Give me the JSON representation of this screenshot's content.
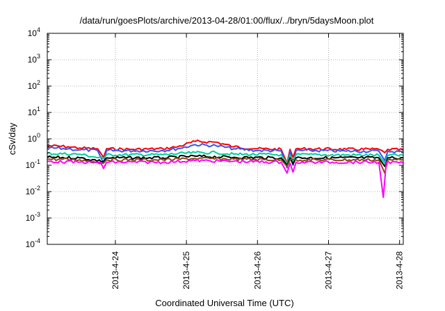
{
  "chart_data": {
    "type": "line",
    "title": "/data/run/goesPlots/archive/2013-04-28/01:00/flux/../bryn/5daysMoon.plot",
    "xlabel": "Coordinated Universal Time (UTC)",
    "ylabel": "cSv/day",
    "yscale": "log",
    "ylim": [
      0.0001,
      10000
    ],
    "xlim": [
      "2013-04-23 01:00",
      "2013-04-28 01:15"
    ],
    "grid": true,
    "x_ticks": [
      {
        "value": "2013-04-24 00:00",
        "label": "2013-4-24"
      },
      {
        "value": "2013-04-25 00:00",
        "label": "2013-4-25"
      },
      {
        "value": "2013-04-26 00:00",
        "label": "2013-4-26"
      },
      {
        "value": "2013-04-27 00:00",
        "label": "2013-4-27"
      },
      {
        "value": "2013-04-28 00:00",
        "label": "2013-4-28"
      }
    ],
    "y_ticks": [
      {
        "value": 0.0001,
        "base": "10",
        "exp": "-4"
      },
      {
        "value": 0.001,
        "base": "10",
        "exp": "-3"
      },
      {
        "value": 0.01,
        "base": "10",
        "exp": "-2"
      },
      {
        "value": 0.1,
        "base": "10",
        "exp": "-1"
      },
      {
        "value": 1,
        "base": "10",
        "exp": "0"
      },
      {
        "value": 10,
        "base": "10",
        "exp": "1"
      },
      {
        "value": 100,
        "base": "10",
        "exp": "2"
      },
      {
        "value": 1000,
        "base": "10",
        "exp": "3"
      },
      {
        "value": 10000,
        "base": "10",
        "exp": "4"
      }
    ],
    "series": [
      {
        "color": "#ff0000",
        "points": [
          [
            "2013-04-23 01:00",
            0.55
          ],
          [
            "2013-04-23 08:00",
            0.5
          ],
          [
            "2013-04-23 12:00",
            0.45
          ],
          [
            "2013-04-23 18:00",
            0.42
          ],
          [
            "2013-04-23 20:00",
            0.2
          ],
          [
            "2013-04-23 21:00",
            0.42
          ],
          [
            "2013-04-24 06:00",
            0.4
          ],
          [
            "2013-04-24 16:00",
            0.42
          ],
          [
            "2013-04-24 21:00",
            0.5
          ],
          [
            "2013-04-25 03:00",
            0.8
          ],
          [
            "2013-04-25 10:00",
            0.75
          ],
          [
            "2013-04-25 16:00",
            0.5
          ],
          [
            "2013-04-26 00:00",
            0.42
          ],
          [
            "2013-04-26 08:00",
            0.4
          ],
          [
            "2013-04-26 10:00",
            0.12
          ],
          [
            "2013-04-26 11:00",
            0.4
          ],
          [
            "2013-04-26 12:00",
            0.2
          ],
          [
            "2013-04-26 13:00",
            0.42
          ],
          [
            "2013-04-26 18:00",
            0.42
          ],
          [
            "2013-04-27 06:00",
            0.4
          ],
          [
            "2013-04-27 17:00",
            0.4
          ],
          [
            "2013-04-27 19:00",
            0.3
          ],
          [
            "2013-04-27 20:00",
            0.4
          ],
          [
            "2013-04-28 01:15",
            0.38
          ]
        ]
      },
      {
        "color": "#3355ff",
        "points": [
          [
            "2013-04-23 01:00",
            0.45
          ],
          [
            "2013-04-23 08:00",
            0.42
          ],
          [
            "2013-04-23 12:00",
            0.38
          ],
          [
            "2013-04-23 18:00",
            0.36
          ],
          [
            "2013-04-23 20:00",
            0.12
          ],
          [
            "2013-04-23 21:00",
            0.36
          ],
          [
            "2013-04-24 06:00",
            0.35
          ],
          [
            "2013-04-24 16:00",
            0.36
          ],
          [
            "2013-04-24 21:00",
            0.42
          ],
          [
            "2013-04-25 03:00",
            0.6
          ],
          [
            "2013-04-25 10:00",
            0.55
          ],
          [
            "2013-04-25 16:00",
            0.42
          ],
          [
            "2013-04-26 00:00",
            0.36
          ],
          [
            "2013-04-26 08:00",
            0.35
          ],
          [
            "2013-04-26 10:00",
            0.08
          ],
          [
            "2013-04-26 11:00",
            0.35
          ],
          [
            "2013-04-26 12:00",
            0.1
          ],
          [
            "2013-04-26 13:00",
            0.36
          ],
          [
            "2013-04-26 18:00",
            0.36
          ],
          [
            "2013-04-27 06:00",
            0.34
          ],
          [
            "2013-04-27 17:00",
            0.34
          ],
          [
            "2013-04-27 19:00",
            0.15
          ],
          [
            "2013-04-27 20:00",
            0.34
          ],
          [
            "2013-04-28 01:15",
            0.32
          ]
        ]
      },
      {
        "color": "#00cc99",
        "points": [
          [
            "2013-04-23 01:00",
            0.28
          ],
          [
            "2013-04-23 12:00",
            0.26
          ],
          [
            "2013-04-23 20:00",
            0.18
          ],
          [
            "2013-04-23 21:00",
            0.25
          ],
          [
            "2013-04-24 16:00",
            0.25
          ],
          [
            "2013-04-25 03:00",
            0.3
          ],
          [
            "2013-04-25 10:00",
            0.3
          ],
          [
            "2013-04-25 16:00",
            0.26
          ],
          [
            "2013-04-26 08:00",
            0.25
          ],
          [
            "2013-04-26 10:00",
            0.12
          ],
          [
            "2013-04-26 11:00",
            0.25
          ],
          [
            "2013-04-26 12:00",
            0.14
          ],
          [
            "2013-04-26 13:00",
            0.25
          ],
          [
            "2013-04-27 17:00",
            0.24
          ],
          [
            "2013-04-27 19:00",
            0.12
          ],
          [
            "2013-04-27 20:00",
            0.24
          ],
          [
            "2013-04-28 01:15",
            0.24
          ]
        ]
      },
      {
        "color": "#000000",
        "points": [
          [
            "2013-04-23 01:00",
            0.2
          ],
          [
            "2013-04-23 12:00",
            0.19
          ],
          [
            "2013-04-23 20:00",
            0.14
          ],
          [
            "2013-04-23 21:00",
            0.19
          ],
          [
            "2013-04-24 16:00",
            0.19
          ],
          [
            "2013-04-25 03:00",
            0.22
          ],
          [
            "2013-04-25 16:00",
            0.2
          ],
          [
            "2013-04-26 08:00",
            0.19
          ],
          [
            "2013-04-26 10:00",
            0.1
          ],
          [
            "2013-04-26 11:00",
            0.19
          ],
          [
            "2013-04-26 12:00",
            0.11
          ],
          [
            "2013-04-26 13:00",
            0.19
          ],
          [
            "2013-04-27 17:00",
            0.19
          ],
          [
            "2013-04-27 19:00",
            0.09
          ],
          [
            "2013-04-27 20:00",
            0.19
          ],
          [
            "2013-04-28 01:15",
            0.19
          ]
        ]
      },
      {
        "color": "#8b4513",
        "points": [
          [
            "2013-04-23 01:00",
            0.17
          ],
          [
            "2013-04-23 12:00",
            0.16
          ],
          [
            "2013-04-23 20:00",
            0.12
          ],
          [
            "2013-04-23 21:00",
            0.16
          ],
          [
            "2013-04-24 16:00",
            0.16
          ],
          [
            "2013-04-25 03:00",
            0.18
          ],
          [
            "2013-04-25 16:00",
            0.17
          ],
          [
            "2013-04-26 08:00",
            0.16
          ],
          [
            "2013-04-26 10:00",
            0.09
          ],
          [
            "2013-04-26 11:00",
            0.16
          ],
          [
            "2013-04-26 13:00",
            0.16
          ],
          [
            "2013-04-27 17:00",
            0.16
          ],
          [
            "2013-04-27 19:00",
            0.05
          ],
          [
            "2013-04-27 20:00",
            0.16
          ],
          [
            "2013-04-28 01:15",
            0.16
          ]
        ]
      },
      {
        "color": "#ff00ff",
        "points": [
          [
            "2013-04-23 01:00",
            0.14
          ],
          [
            "2013-04-23 12:00",
            0.13
          ],
          [
            "2013-04-23 19:00",
            0.13
          ],
          [
            "2013-04-23 20:00",
            0.075
          ],
          [
            "2013-04-23 21:00",
            0.13
          ],
          [
            "2013-04-24 16:00",
            0.13
          ],
          [
            "2013-04-25 03:00",
            0.15
          ],
          [
            "2013-04-25 16:00",
            0.14
          ],
          [
            "2013-04-26 08:00",
            0.13
          ],
          [
            "2013-04-26 10:00",
            0.05
          ],
          [
            "2013-04-26 11:00",
            0.12
          ],
          [
            "2013-04-26 12:00",
            0.055
          ],
          [
            "2013-04-26 13:00",
            0.13
          ],
          [
            "2013-04-27 17:00",
            0.13
          ],
          [
            "2013-04-27 18:30",
            0.006
          ],
          [
            "2013-04-27 19:30",
            0.13
          ],
          [
            "2013-04-28 01:15",
            0.12
          ]
        ]
      }
    ]
  }
}
